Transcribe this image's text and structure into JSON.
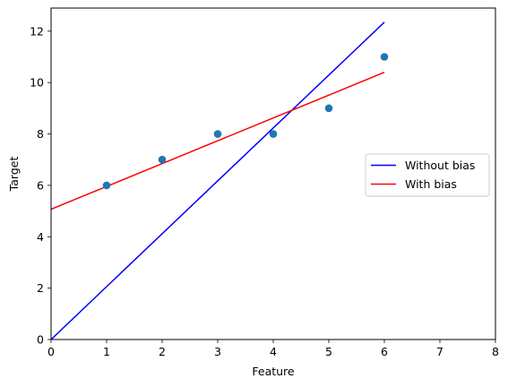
{
  "chart_data": {
    "type": "scatter",
    "title": "",
    "xlabel": "Feature",
    "ylabel": "Target",
    "xlim": [
      0,
      8
    ],
    "ylim": [
      0,
      12.9
    ],
    "x_ticks": [
      0,
      1,
      2,
      3,
      4,
      5,
      6,
      7,
      8
    ],
    "y_ticks": [
      0,
      2,
      4,
      6,
      8,
      10,
      12
    ],
    "grid": false,
    "legend_position": "center-right",
    "points": {
      "color": "#1f77b4",
      "x": [
        1,
        2,
        3,
        4,
        5,
        6
      ],
      "y": [
        6,
        7,
        8,
        8,
        9,
        11
      ]
    },
    "series": [
      {
        "name": "Without bias",
        "type": "line",
        "color": "#0000ff",
        "x": [
          0,
          6
        ],
        "y": [
          0,
          12.35
        ]
      },
      {
        "name": "With bias",
        "type": "line",
        "color": "#ff0000",
        "x": [
          0,
          6
        ],
        "y": [
          5.07,
          10.4
        ]
      }
    ]
  }
}
